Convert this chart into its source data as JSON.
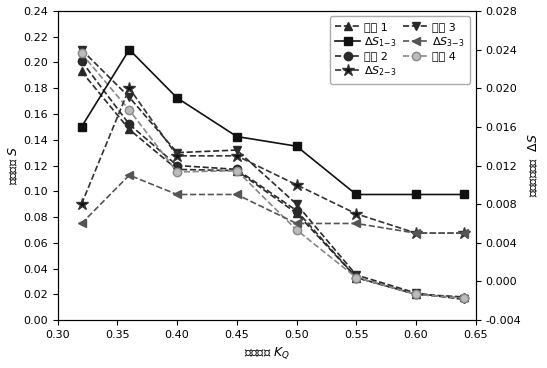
{
  "x": [
    0.32,
    0.36,
    0.4,
    0.45,
    0.5,
    0.55,
    0.6,
    0.64
  ],
  "fangan1": [
    0.193,
    0.148,
    0.117,
    0.116,
    0.083,
    0.033,
    0.02,
    0.018
  ],
  "fangan2": [
    0.201,
    0.152,
    0.12,
    0.117,
    0.085,
    0.033,
    0.02,
    0.017
  ],
  "fangan3": [
    0.21,
    0.173,
    0.13,
    0.132,
    0.09,
    0.035,
    0.021,
    0.016
  ],
  "fangan4": [
    0.207,
    0.163,
    0.115,
    0.116,
    0.07,
    0.033,
    0.02,
    0.017
  ],
  "delta_s13": [
    0.016,
    0.024,
    0.019,
    0.015,
    0.014,
    0.009,
    0.009,
    0.009
  ],
  "delta_s23": [
    0.008,
    0.02,
    0.013,
    0.013,
    0.01,
    0.007,
    0.005,
    0.005
  ],
  "delta_s33": [
    0.006,
    0.011,
    0.009,
    0.009,
    0.006,
    0.006,
    0.005,
    0.005
  ],
  "left_ylim": [
    0.0,
    0.24
  ],
  "right_ylim": [
    -0.004,
    0.028
  ],
  "left_yticks": [
    0.0,
    0.02,
    0.04,
    0.06,
    0.08,
    0.1,
    0.12,
    0.14,
    0.16,
    0.18,
    0.2,
    0.22,
    0.24
  ],
  "right_yticks": [
    -0.004,
    0.0,
    0.004,
    0.008,
    0.012,
    0.016,
    0.02,
    0.024,
    0.028
  ],
  "xticks": [
    0.3,
    0.35,
    0.4,
    0.45,
    0.5,
    0.55,
    0.6,
    0.65
  ],
  "xlabel": "流量系数 $K_Q$",
  "ylabel_left": "动量参数 $S$",
  "ylabel_right": "动量参数差值  $\\Delta S$",
  "legend_fangan": [
    "方案 1",
    "方案 2",
    "方案 3",
    "方案 4"
  ],
  "legend_delta_raw": [
    "\\Delta S_{1-3}",
    "\\Delta S_{2-3}",
    "\\Delta S_{3-3}"
  ]
}
